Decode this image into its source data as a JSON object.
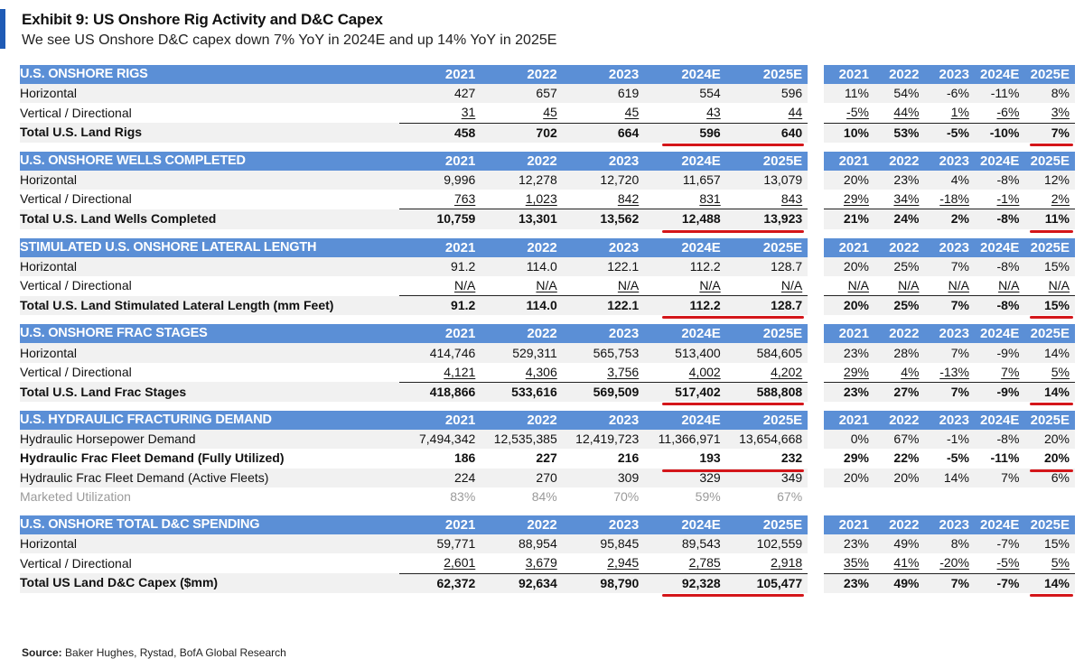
{
  "exhibit": {
    "title": "Exhibit 9: US Onshore Rig Activity and D&C Capex",
    "subtitle": "We see US Onshore D&C capex down 7% YoY in 2024E and up 14% YoY in 2025E",
    "source_label": "Source:",
    "source_text": " Baker Hughes, Rystad, BofA Global Research"
  },
  "years": [
    "2021",
    "2022",
    "2023",
    "2024E",
    "2025E"
  ],
  "sections": [
    {
      "title": "U.S. ONSHORE RIGS",
      "rows": [
        {
          "label": "Horizontal",
          "values": [
            "427",
            "657",
            "619",
            "554",
            "596"
          ],
          "pct": [
            "11%",
            "54%",
            "-6%",
            "-11%",
            "8%"
          ]
        },
        {
          "label": "Vertical / Directional",
          "values": [
            "31",
            "45",
            "45",
            "43",
            "44"
          ],
          "pct": [
            "-5%",
            "44%",
            "1%",
            "-6%",
            "3%"
          ]
        },
        {
          "label": "Total U.S. Land Rigs",
          "values": [
            "458",
            "702",
            "664",
            "596",
            "640"
          ],
          "pct": [
            "10%",
            "53%",
            "-5%",
            "-10%",
            "7%"
          ]
        }
      ]
    },
    {
      "title": "U.S. ONSHORE WELLS COMPLETED",
      "rows": [
        {
          "label": "Horizontal",
          "values": [
            "9,996",
            "12,278",
            "12,720",
            "11,657",
            "13,079"
          ],
          "pct": [
            "20%",
            "23%",
            "4%",
            "-8%",
            "12%"
          ]
        },
        {
          "label": "Vertical / Directional",
          "values": [
            "763",
            "1,023",
            "842",
            "831",
            "843"
          ],
          "pct": [
            "29%",
            "34%",
            "-18%",
            "-1%",
            "2%"
          ]
        },
        {
          "label": "Total U.S. Land Wells Completed",
          "values": [
            "10,759",
            "13,301",
            "13,562",
            "12,488",
            "13,923"
          ],
          "pct": [
            "21%",
            "24%",
            "2%",
            "-8%",
            "11%"
          ]
        }
      ]
    },
    {
      "title": "STIMULATED U.S. ONSHORE LATERAL LENGTH",
      "rows": [
        {
          "label": "Horizontal",
          "values": [
            "91.2",
            "114.0",
            "122.1",
            "112.2",
            "128.7"
          ],
          "pct": [
            "20%",
            "25%",
            "7%",
            "-8%",
            "15%"
          ]
        },
        {
          "label": "Vertical / Directional",
          "values": [
            "N/A",
            "N/A",
            "N/A",
            "N/A",
            "N/A"
          ],
          "pct": [
            "N/A",
            "N/A",
            "N/A",
            "N/A",
            "N/A"
          ]
        },
        {
          "label": "Total U.S. Land Stimulated Lateral Length (mm Feet)",
          "values": [
            "91.2",
            "114.0",
            "122.1",
            "112.2",
            "128.7"
          ],
          "pct": [
            "20%",
            "25%",
            "7%",
            "-8%",
            "15%"
          ]
        }
      ]
    },
    {
      "title": "U.S. ONSHORE FRAC STAGES",
      "rows": [
        {
          "label": "Horizontal",
          "values": [
            "414,746",
            "529,311",
            "565,753",
            "513,400",
            "584,605"
          ],
          "pct": [
            "23%",
            "28%",
            "7%",
            "-9%",
            "14%"
          ]
        },
        {
          "label": "Vertical / Directional",
          "values": [
            "4,121",
            "4,306",
            "3,756",
            "4,002",
            "4,202"
          ],
          "pct": [
            "29%",
            "4%",
            "-13%",
            "7%",
            "5%"
          ]
        },
        {
          "label": "Total U.S. Land Frac Stages",
          "values": [
            "418,866",
            "533,616",
            "569,509",
            "517,402",
            "588,808"
          ],
          "pct": [
            "23%",
            "27%",
            "7%",
            "-9%",
            "14%"
          ]
        }
      ]
    },
    {
      "title": "U.S. HYDRAULIC FRACTURING DEMAND",
      "rows": [
        {
          "label": "Hydraulic Horsepower Demand",
          "values": [
            "7,494,342",
            "12,535,385",
            "12,419,723",
            "11,366,971",
            "13,654,668"
          ],
          "pct": [
            "0%",
            "67%",
            "-1%",
            "-8%",
            "20%"
          ]
        },
        {
          "label": "Hydraulic Frac Fleet Demand (Fully Utilized)",
          "values": [
            "186",
            "227",
            "216",
            "193",
            "232"
          ],
          "pct": [
            "29%",
            "22%",
            "-5%",
            "-11%",
            "20%"
          ]
        },
        {
          "label": "Hydraulic Frac Fleet Demand (Active Fleets)",
          "values": [
            "224",
            "270",
            "309",
            "329",
            "349"
          ],
          "pct": [
            "20%",
            "20%",
            "14%",
            "7%",
            "6%"
          ]
        },
        {
          "label": "Marketed Utilization",
          "values": [
            "83%",
            "84%",
            "70%",
            "59%",
            "67%"
          ],
          "pct": [
            "",
            "",
            "",
            "",
            ""
          ]
        }
      ]
    },
    {
      "title": "U.S. ONSHORE TOTAL D&C SPENDING",
      "rows": [
        {
          "label": "Horizontal",
          "values": [
            "59,771",
            "88,954",
            "95,845",
            "89,543",
            "102,559"
          ],
          "pct": [
            "23%",
            "49%",
            "8%",
            "-7%",
            "15%"
          ]
        },
        {
          "label": "Vertical / Directional",
          "values": [
            "2,601",
            "3,679",
            "2,945",
            "2,785",
            "2,918"
          ],
          "pct": [
            "35%",
            "41%",
            "-20%",
            "-5%",
            "5%"
          ]
        },
        {
          "label": "Total US Land D&C Capex ($mm)",
          "values": [
            "62,372",
            "92,634",
            "98,790",
            "92,328",
            "105,477"
          ],
          "pct": [
            "23%",
            "49%",
            "7%",
            "-7%",
            "14%"
          ]
        }
      ]
    }
  ]
}
